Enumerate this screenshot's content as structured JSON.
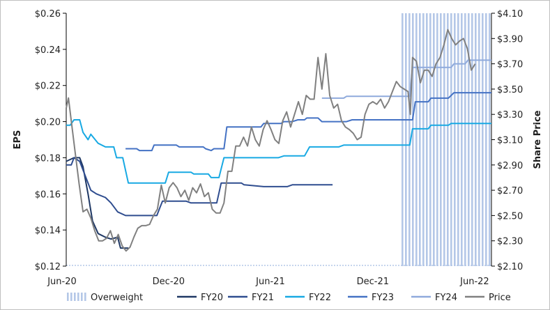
{
  "chart_data": {
    "type": "line",
    "x_ticks": [
      "Jun-20",
      "Dec-20",
      "Jun-21",
      "Dec-21",
      "Jun-22"
    ],
    "y_left": {
      "label": "EPS",
      "range": [
        0.12,
        0.26
      ],
      "ticks": [
        "$0.12",
        "$0.14",
        "$0.16",
        "$0.18",
        "$0.20",
        "$0.22",
        "$0.24",
        "$0.26"
      ]
    },
    "y_right": {
      "label": "Share Price",
      "range": [
        2.1,
        4.1
      ],
      "ticks": [
        "$2.10",
        "$2.30",
        "$2.50",
        "$2.70",
        "$2.90",
        "$3.10",
        "$3.30",
        "$3.50",
        "$3.70",
        "$3.90",
        "$4.10"
      ]
    },
    "legend_position": "bottom",
    "grid": false,
    "overweight": {
      "name": "Overweight",
      "color": "#b4c7e7",
      "ranges": [
        [
          "2022-01-20",
          "2022-07-01"
        ]
      ]
    },
    "series": [
      {
        "name": "FY20",
        "axis": "left",
        "color": "#1f3864",
        "width": 2,
        "points": [
          [
            "2020-06-01",
            0.178
          ],
          [
            "2020-06-15",
            0.18
          ],
          [
            "2020-06-25",
            0.18
          ],
          [
            "2020-07-01",
            0.175
          ],
          [
            "2020-07-10",
            0.16
          ],
          [
            "2020-07-18",
            0.145
          ],
          [
            "2020-07-28",
            0.138
          ],
          [
            "2020-08-10",
            0.136
          ],
          [
            "2020-08-20",
            0.135
          ],
          [
            "2020-09-01",
            0.136
          ],
          [
            "2020-09-06",
            0.13
          ],
          [
            "2020-09-20",
            0.13
          ]
        ]
      },
      {
        "name": "FY21",
        "axis": "left",
        "color": "#2f4d8f",
        "width": 2,
        "points": [
          [
            "2020-06-01",
            0.176
          ],
          [
            "2020-06-10",
            0.176
          ],
          [
            "2020-06-15",
            0.18
          ],
          [
            "2020-06-25",
            0.178
          ],
          [
            "2020-07-05",
            0.17
          ],
          [
            "2020-07-15",
            0.162
          ],
          [
            "2020-07-25",
            0.16
          ],
          [
            "2020-08-10",
            0.158
          ],
          [
            "2020-08-20",
            0.155
          ],
          [
            "2020-09-01",
            0.15
          ],
          [
            "2020-09-15",
            0.148
          ],
          [
            "2020-10-20",
            0.148
          ],
          [
            "2020-11-10",
            0.148
          ],
          [
            "2020-11-15",
            0.152
          ],
          [
            "2020-11-20",
            0.156
          ],
          [
            "2021-01-01",
            0.156
          ],
          [
            "2021-01-10",
            0.155
          ],
          [
            "2021-02-25",
            0.155
          ],
          [
            "2021-03-05",
            0.166
          ],
          [
            "2021-04-10",
            0.166
          ],
          [
            "2021-04-15",
            0.165
          ],
          [
            "2021-05-20",
            0.164
          ],
          [
            "2021-07-01",
            0.164
          ],
          [
            "2021-07-10",
            0.165
          ],
          [
            "2021-09-20",
            0.165
          ]
        ]
      },
      {
        "name": "FY22",
        "axis": "left",
        "color": "#18a9e3",
        "width": 2,
        "points": [
          [
            "2020-06-01",
            0.198
          ],
          [
            "2020-06-08",
            0.198
          ],
          [
            "2020-06-15",
            0.201
          ],
          [
            "2020-06-25",
            0.201
          ],
          [
            "2020-07-01",
            0.194
          ],
          [
            "2020-07-10",
            0.19
          ],
          [
            "2020-07-15",
            0.193
          ],
          [
            "2020-07-28",
            0.188
          ],
          [
            "2020-08-10",
            0.186
          ],
          [
            "2020-08-25",
            0.186
          ],
          [
            "2020-08-30",
            0.18
          ],
          [
            "2020-09-10",
            0.18
          ],
          [
            "2020-09-20",
            0.166
          ],
          [
            "2020-11-25",
            0.166
          ],
          [
            "2020-12-01",
            0.172
          ],
          [
            "2021-01-10",
            0.172
          ],
          [
            "2021-01-15",
            0.171
          ],
          [
            "2021-02-10",
            0.171
          ],
          [
            "2021-02-15",
            0.169
          ],
          [
            "2021-03-01",
            0.169
          ],
          [
            "2021-03-10",
            0.18
          ],
          [
            "2021-06-15",
            0.18
          ],
          [
            "2021-06-25",
            0.181
          ],
          [
            "2021-08-01",
            0.181
          ],
          [
            "2021-08-10",
            0.186
          ],
          [
            "2021-10-01",
            0.186
          ],
          [
            "2021-10-10",
            0.187
          ],
          [
            "2022-01-15",
            0.187
          ],
          [
            "2022-01-25",
            0.187
          ],
          [
            "2022-02-05",
            0.187
          ],
          [
            "2022-02-10",
            0.196
          ],
          [
            "2022-03-10",
            0.196
          ],
          [
            "2022-03-15",
            0.198
          ],
          [
            "2022-04-15",
            0.198
          ],
          [
            "2022-04-20",
            0.199
          ],
          [
            "2022-07-01",
            0.199
          ]
        ]
      },
      {
        "name": "FY23",
        "axis": "left",
        "color": "#4472c4",
        "width": 2,
        "points": [
          [
            "2020-09-15",
            0.185
          ],
          [
            "2020-10-05",
            0.185
          ],
          [
            "2020-10-10",
            0.184
          ],
          [
            "2020-11-01",
            0.184
          ],
          [
            "2020-11-05",
            0.187
          ],
          [
            "2020-12-15",
            0.187
          ],
          [
            "2020-12-20",
            0.186
          ],
          [
            "2021-02-01",
            0.186
          ],
          [
            "2021-02-05",
            0.185
          ],
          [
            "2021-02-15",
            0.184
          ],
          [
            "2021-02-20",
            0.185
          ],
          [
            "2021-03-10",
            0.185
          ],
          [
            "2021-03-15",
            0.197
          ],
          [
            "2021-05-15",
            0.197
          ],
          [
            "2021-05-20",
            0.199
          ],
          [
            "2021-06-20",
            0.199
          ],
          [
            "2021-06-25",
            0.2
          ],
          [
            "2021-07-10",
            0.2
          ],
          [
            "2021-07-20",
            0.201
          ],
          [
            "2021-08-01",
            0.201
          ],
          [
            "2021-08-05",
            0.202
          ],
          [
            "2021-08-25",
            0.202
          ],
          [
            "2021-09-01",
            0.2
          ],
          [
            "2021-10-15",
            0.2
          ],
          [
            "2021-10-25",
            0.201
          ],
          [
            "2022-02-10",
            0.201
          ],
          [
            "2022-02-15",
            0.211
          ],
          [
            "2022-03-10",
            0.211
          ],
          [
            "2022-03-15",
            0.213
          ],
          [
            "2022-04-15",
            0.213
          ],
          [
            "2022-04-25",
            0.216
          ],
          [
            "2022-07-01",
            0.216
          ]
        ]
      },
      {
        "name": "FY24",
        "axis": "left",
        "color": "#8faadc",
        "width": 2,
        "points": [
          [
            "2021-09-01",
            0.213
          ],
          [
            "2021-10-10",
            0.213
          ],
          [
            "2021-10-15",
            0.214
          ],
          [
            "2022-02-05",
            0.214
          ],
          [
            "2022-02-10",
            0.23
          ],
          [
            "2022-04-20",
            0.23
          ],
          [
            "2022-04-25",
            0.232
          ],
          [
            "2022-05-15",
            0.232
          ],
          [
            "2022-05-20",
            0.234
          ],
          [
            "2022-07-01",
            0.234
          ]
        ]
      },
      {
        "name": "Price",
        "axis": "right",
        "color": "#808080",
        "width": 2,
        "points": [
          [
            "2020-06-01",
            3.35
          ],
          [
            "2020-06-05",
            3.43
          ],
          [
            "2020-06-10",
            3.25
          ],
          [
            "2020-06-17",
            3.0
          ],
          [
            "2020-06-24",
            2.75
          ],
          [
            "2020-07-01",
            2.53
          ],
          [
            "2020-07-08",
            2.55
          ],
          [
            "2020-07-15",
            2.48
          ],
          [
            "2020-07-22",
            2.38
          ],
          [
            "2020-07-29",
            2.3
          ],
          [
            "2020-08-05",
            2.3
          ],
          [
            "2020-08-12",
            2.32
          ],
          [
            "2020-08-19",
            2.38
          ],
          [
            "2020-08-26",
            2.28
          ],
          [
            "2020-09-02",
            2.35
          ],
          [
            "2020-09-09",
            2.26
          ],
          [
            "2020-09-16",
            2.22
          ],
          [
            "2020-09-23",
            2.25
          ],
          [
            "2020-09-30",
            2.33
          ],
          [
            "2020-10-07",
            2.4
          ],
          [
            "2020-10-14",
            2.42
          ],
          [
            "2020-10-21",
            2.42
          ],
          [
            "2020-10-28",
            2.43
          ],
          [
            "2020-11-04",
            2.5
          ],
          [
            "2020-11-11",
            2.55
          ],
          [
            "2020-11-18",
            2.74
          ],
          [
            "2020-11-25",
            2.6
          ],
          [
            "2020-12-02",
            2.72
          ],
          [
            "2020-12-09",
            2.76
          ],
          [
            "2020-12-16",
            2.72
          ],
          [
            "2020-12-23",
            2.65
          ],
          [
            "2020-12-30",
            2.7
          ],
          [
            "2021-01-06",
            2.62
          ],
          [
            "2021-01-13",
            2.72
          ],
          [
            "2021-01-20",
            2.68
          ],
          [
            "2021-01-27",
            2.75
          ],
          [
            "2021-02-03",
            2.65
          ],
          [
            "2021-02-10",
            2.68
          ],
          [
            "2021-02-17",
            2.55
          ],
          [
            "2021-02-24",
            2.52
          ],
          [
            "2021-03-03",
            2.52
          ],
          [
            "2021-03-10",
            2.6
          ],
          [
            "2021-03-17",
            2.85
          ],
          [
            "2021-03-24",
            2.85
          ],
          [
            "2021-03-31",
            3.05
          ],
          [
            "2021-04-07",
            3.05
          ],
          [
            "2021-04-14",
            3.12
          ],
          [
            "2021-04-21",
            3.05
          ],
          [
            "2021-04-28",
            3.2
          ],
          [
            "2021-05-05",
            3.1
          ],
          [
            "2021-05-12",
            3.05
          ],
          [
            "2021-05-19",
            3.18
          ],
          [
            "2021-05-26",
            3.25
          ],
          [
            "2021-06-02",
            3.18
          ],
          [
            "2021-06-09",
            3.1
          ],
          [
            "2021-06-16",
            3.07
          ],
          [
            "2021-06-23",
            3.25
          ],
          [
            "2021-06-30",
            3.32
          ],
          [
            "2021-07-07",
            3.2
          ],
          [
            "2021-07-14",
            3.3
          ],
          [
            "2021-07-21",
            3.4
          ],
          [
            "2021-07-28",
            3.3
          ],
          [
            "2021-08-04",
            3.45
          ],
          [
            "2021-08-11",
            3.42
          ],
          [
            "2021-08-18",
            3.42
          ],
          [
            "2021-08-25",
            3.75
          ],
          [
            "2021-09-01",
            3.5
          ],
          [
            "2021-09-08",
            3.78
          ],
          [
            "2021-09-15",
            3.45
          ],
          [
            "2021-09-22",
            3.35
          ],
          [
            "2021-09-29",
            3.38
          ],
          [
            "2021-10-06",
            3.25
          ],
          [
            "2021-10-13",
            3.2
          ],
          [
            "2021-10-20",
            3.18
          ],
          [
            "2021-10-27",
            3.15
          ],
          [
            "2021-11-03",
            3.1
          ],
          [
            "2021-11-10",
            3.12
          ],
          [
            "2021-11-17",
            3.3
          ],
          [
            "2021-11-24",
            3.38
          ],
          [
            "2021-12-01",
            3.4
          ],
          [
            "2021-12-08",
            3.38
          ],
          [
            "2021-12-15",
            3.42
          ],
          [
            "2021-12-22",
            3.35
          ],
          [
            "2021-12-29",
            3.4
          ],
          [
            "2022-01-05",
            3.48
          ],
          [
            "2022-01-12",
            3.56
          ],
          [
            "2022-01-19",
            3.52
          ],
          [
            "2022-01-26",
            3.5
          ],
          [
            "2022-02-02",
            3.48
          ],
          [
            "2022-02-06",
            3.3
          ],
          [
            "2022-02-10",
            3.75
          ],
          [
            "2022-02-17",
            3.72
          ],
          [
            "2022-02-24",
            3.55
          ],
          [
            "2022-03-03",
            3.65
          ],
          [
            "2022-03-10",
            3.65
          ],
          [
            "2022-03-17",
            3.6
          ],
          [
            "2022-03-24",
            3.7
          ],
          [
            "2022-03-31",
            3.75
          ],
          [
            "2022-04-07",
            3.85
          ],
          [
            "2022-04-14",
            3.97
          ],
          [
            "2022-04-21",
            3.9
          ],
          [
            "2022-04-28",
            3.85
          ],
          [
            "2022-05-05",
            3.88
          ],
          [
            "2022-05-12",
            3.9
          ],
          [
            "2022-05-19",
            3.82
          ],
          [
            "2022-05-26",
            3.65
          ],
          [
            "2022-06-02",
            3.7
          ]
        ]
      }
    ]
  }
}
